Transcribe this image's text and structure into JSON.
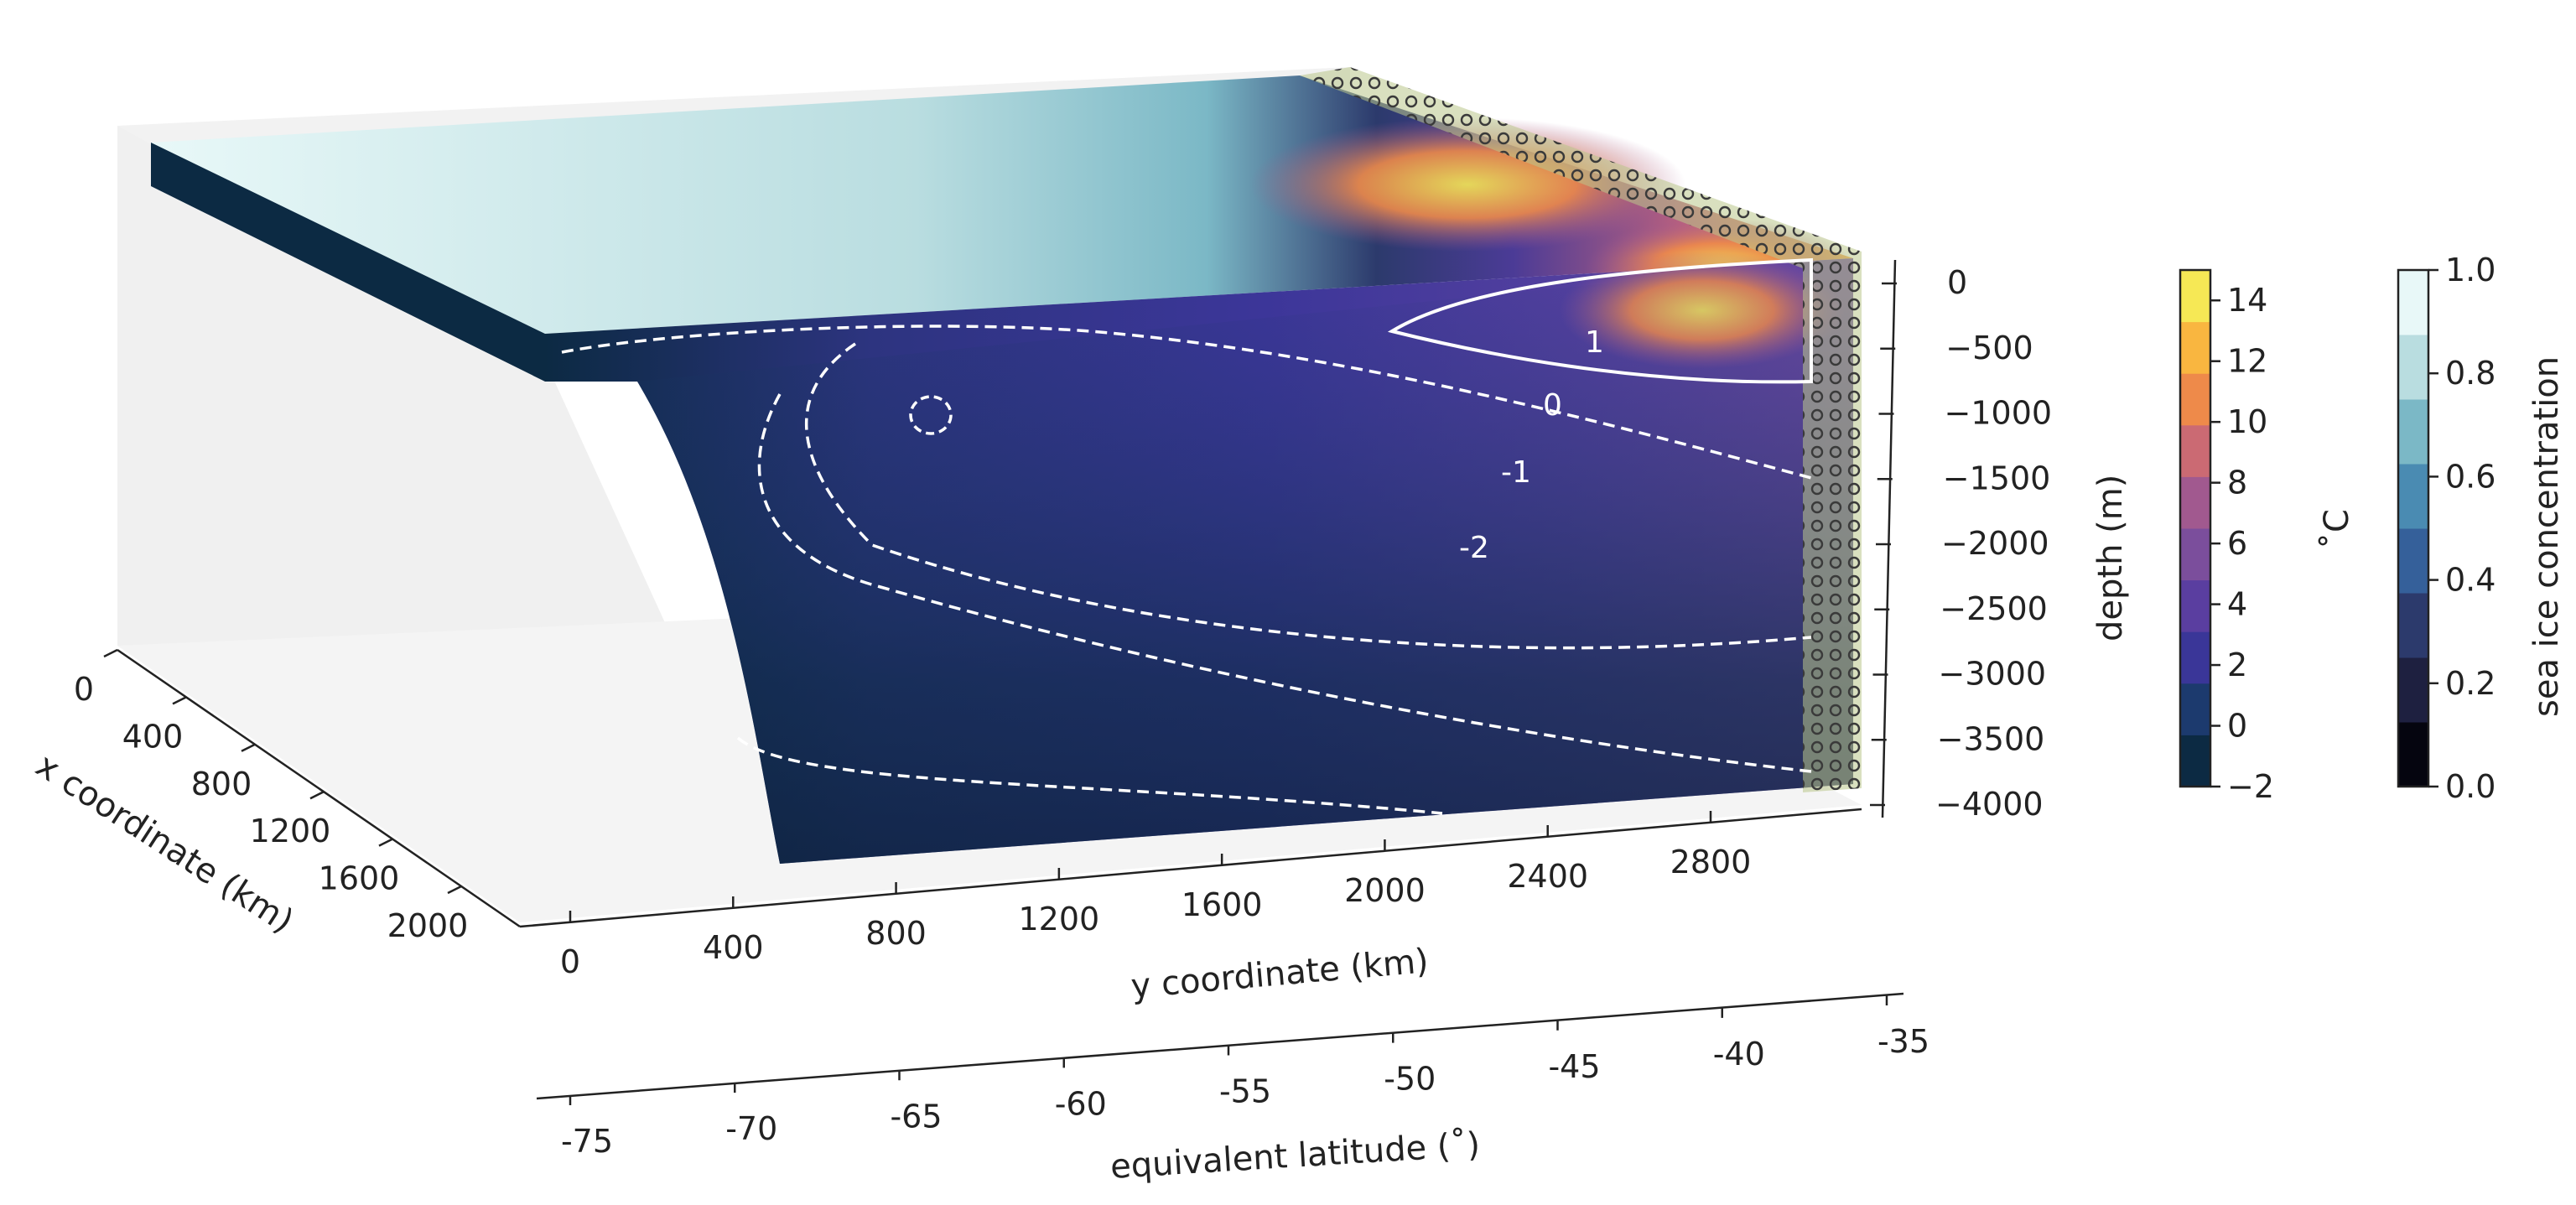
{
  "chart_data": {
    "type": "3d-ocean-section",
    "title": "",
    "surface_field": "sea ice concentration",
    "section_field": "temperature",
    "axes": {
      "x": {
        "label": "x coordinate (km)",
        "ticks": [
          "0",
          "400",
          "800",
          "1200",
          "1600",
          "2000"
        ],
        "range": [
          0,
          2200
        ]
      },
      "y": {
        "label": "y coordinate (km)",
        "ticks": [
          "0",
          "400",
          "800",
          "1200",
          "1600",
          "2000",
          "2400",
          "2800"
        ],
        "range": [
          0,
          3100
        ]
      },
      "latitude": {
        "label": "equivalent latitude (˚)",
        "ticks": [
          "-75",
          "-70",
          "-65",
          "-60",
          "-55",
          "-50",
          "-45",
          "-40",
          "-35"
        ]
      },
      "z": {
        "label": "depth (m)",
        "ticks": [
          "0",
          "−500",
          "−1000",
          "−1500",
          "−2000",
          "−2500",
          "−3000",
          "−3500",
          "−4000"
        ],
        "range": [
          -4000,
          0
        ]
      }
    },
    "colorbars": [
      {
        "label": "˚C",
        "ticks": [
          "−2",
          "0",
          "2",
          "4",
          "6",
          "8",
          "10",
          "12",
          "14"
        ],
        "range": [
          -2,
          15
        ],
        "colors": [
          "#0c2a43",
          "#1c3a6e",
          "#3a3698",
          "#5a3ea0",
          "#7b4e9c",
          "#a1598f",
          "#cb6a73",
          "#ee8a4a",
          "#f9b640",
          "#f6e855"
        ]
      },
      {
        "label": "sea ice concentration",
        "ticks": [
          "0.0",
          "0.2",
          "0.4",
          "0.6",
          "0.8",
          "1.0"
        ],
        "range": [
          0,
          1
        ],
        "colors": [
          "#05050f",
          "#1e2040",
          "#2c3a6c",
          "#35609a",
          "#4a8bb2",
          "#7bb8c6",
          "#b9dde0",
          "#e8f8f8"
        ]
      }
    ],
    "contours": [
      {
        "label": "1",
        "style": "solid-white"
      },
      {
        "label": "0",
        "style": "dashed"
      },
      {
        "label": "-1",
        "style": "dashed"
      },
      {
        "label": "-2",
        "style": "dashed"
      }
    ],
    "annotations": [
      "hatched sponge region along northern boundary"
    ]
  }
}
